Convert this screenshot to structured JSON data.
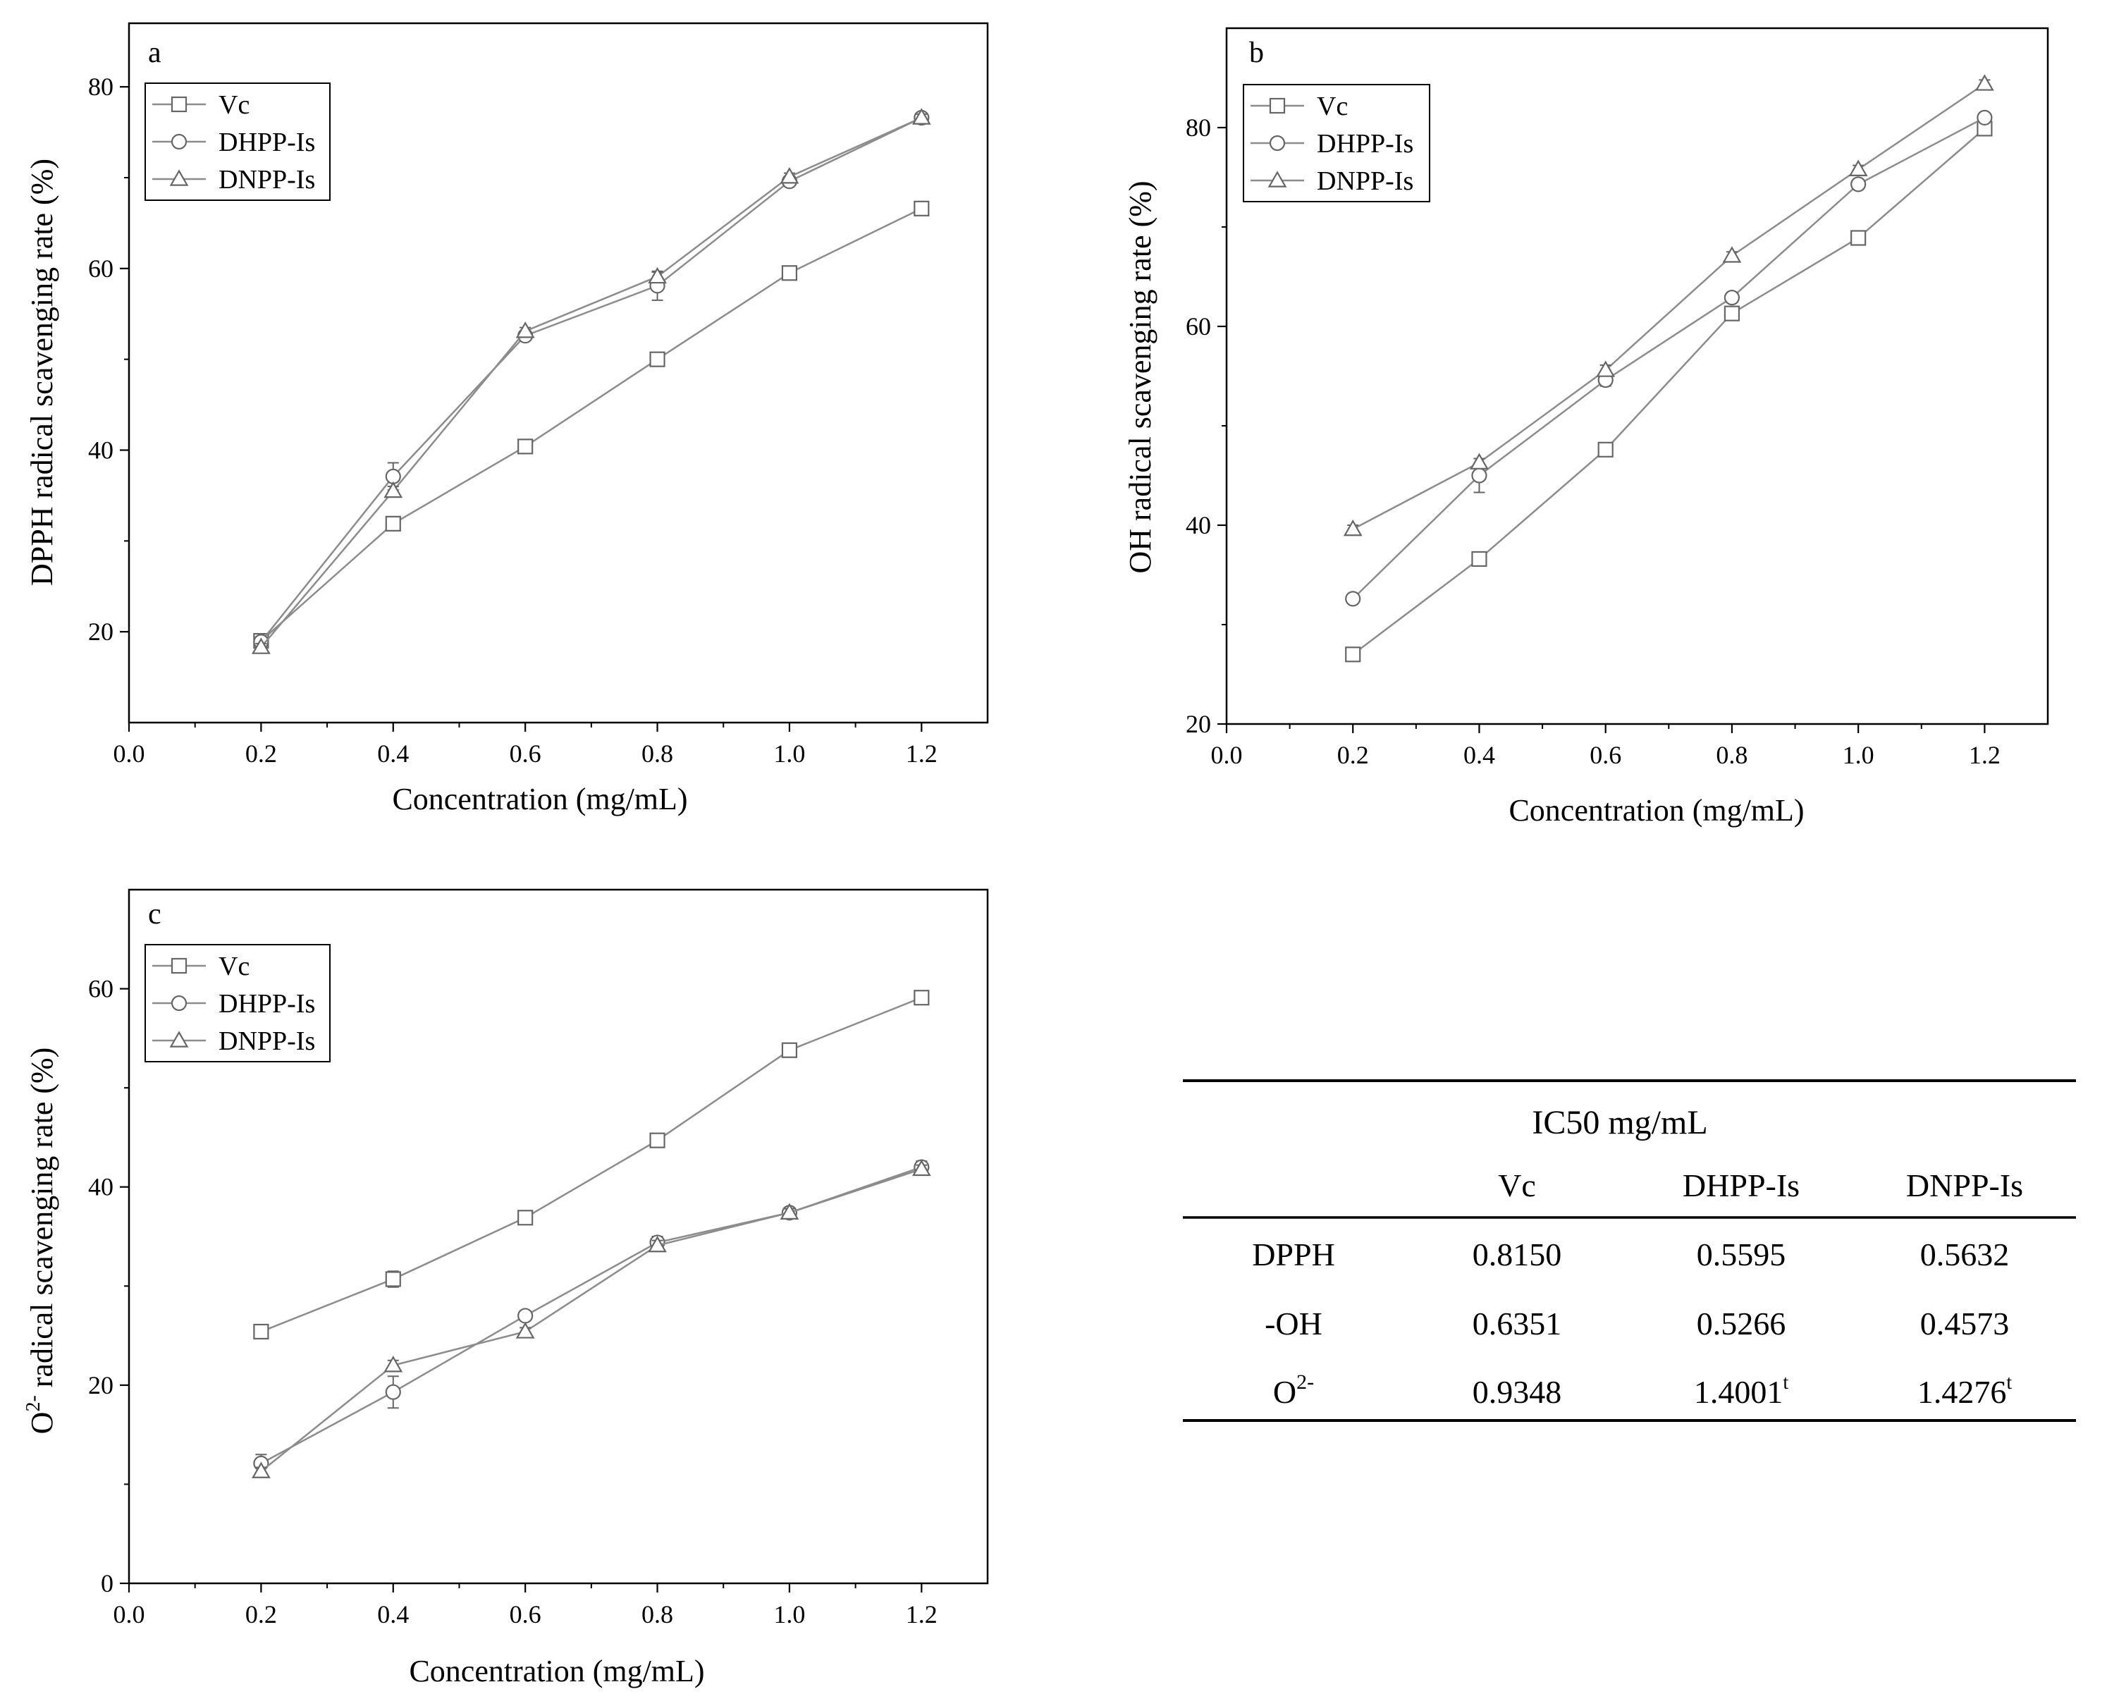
{
  "chart_data": [
    {
      "type": "line",
      "panel_label": "a",
      "xlabel": "Concentration (mg/mL)",
      "ylabel": "DPPH radical scavenging rate (%)",
      "xlim": [
        0.0,
        1.3
      ],
      "ylim": [
        10,
        87
      ],
      "xticks": [
        0.0,
        0.2,
        0.4,
        0.6,
        0.8,
        1.0,
        1.2
      ],
      "xtick_labels": [
        "0.0",
        "0.2",
        "0.4",
        "0.6",
        "0.8",
        "1.0",
        "1.2"
      ],
      "yticks": [
        20,
        40,
        60,
        80
      ],
      "ytick_labels": [
        "20",
        "40",
        "60",
        "80"
      ],
      "legend_position": "top-left",
      "x": [
        0.2,
        0.4,
        0.6,
        0.8,
        1.0,
        1.2
      ],
      "series": [
        {
          "name": "Vc",
          "marker": "square",
          "values": [
            19.0,
            31.9,
            40.4,
            50.0,
            59.5,
            66.6
          ],
          "errors": [
            0.4,
            0.5,
            0.4,
            0.4,
            0.5,
            0.5
          ]
        },
        {
          "name": "DHPP-Is",
          "marker": "circle",
          "values": [
            18.9,
            37.1,
            52.6,
            58.1,
            69.6,
            76.6
          ],
          "errors": [
            0.5,
            1.5,
            0.5,
            1.6,
            0.5,
            0.4
          ]
        },
        {
          "name": "DNPP-Is",
          "marker": "triangle",
          "values": [
            18.3,
            35.5,
            53.1,
            59.1,
            70.1,
            76.6
          ],
          "errors": [
            0.4,
            0.5,
            0.4,
            0.5,
            0.4,
            0.4
          ]
        }
      ]
    },
    {
      "type": "line",
      "panel_label": "b",
      "xlabel": "Concentration (mg/mL)",
      "ylabel": "OH radical scavenging rate (%)",
      "xlim": [
        0.0,
        1.3
      ],
      "ylim": [
        20,
        90
      ],
      "xticks": [
        0.0,
        0.2,
        0.4,
        0.6,
        0.8,
        1.0,
        1.2
      ],
      "xtick_labels": [
        "0.0",
        "0.2",
        "0.4",
        "0.6",
        "0.8",
        "1.0",
        "1.2"
      ],
      "yticks": [
        20,
        40,
        60,
        80
      ],
      "ytick_labels": [
        "20",
        "40",
        "60",
        "80"
      ],
      "legend_position": "top-left",
      "x": [
        0.2,
        0.4,
        0.6,
        0.8,
        1.0,
        1.2
      ],
      "series": [
        {
          "name": "Vc",
          "marker": "square",
          "values": [
            27.0,
            36.6,
            47.6,
            61.3,
            68.9,
            79.9
          ],
          "errors": [
            0.5,
            0.4,
            0.5,
            0.6,
            0.5,
            0.5
          ]
        },
        {
          "name": "DHPP-Is",
          "marker": "circle",
          "values": [
            32.6,
            45.0,
            54.6,
            62.9,
            74.3,
            81.0
          ],
          "errors": [
            0.4,
            1.7,
            0.6,
            0.5,
            0.5,
            0.4
          ]
        },
        {
          "name": "DNPP-Is",
          "marker": "triangle",
          "values": [
            39.6,
            46.3,
            55.6,
            67.1,
            75.8,
            84.4
          ],
          "errors": [
            0.4,
            0.4,
            0.5,
            0.4,
            0.4,
            0.4
          ]
        }
      ]
    },
    {
      "type": "line",
      "panel_label": "c",
      "xlabel": "Concentration (mg/mL)",
      "ylabel": "O2- radical scavenging rate (%)",
      "ylabel_main": "O",
      "ylabel_sup": "2-",
      "ylabel_rest": " radical scavenging rate (%)",
      "xlim": [
        0.0,
        1.3
      ],
      "ylim": [
        0,
        70
      ],
      "xticks": [
        0.0,
        0.2,
        0.4,
        0.6,
        0.8,
        1.0,
        1.2
      ],
      "xtick_labels": [
        "0.0",
        "0.2",
        "0.4",
        "0.6",
        "0.8",
        "1.0",
        "1.2"
      ],
      "yticks": [
        0,
        20,
        40,
        60
      ],
      "ytick_labels": [
        "0",
        "20",
        "40",
        "60"
      ],
      "legend_position": "top-left",
      "x": [
        0.2,
        0.4,
        0.6,
        0.8,
        1.0,
        1.2
      ],
      "series": [
        {
          "name": "Vc",
          "marker": "square",
          "values": [
            25.4,
            30.7,
            36.9,
            44.7,
            53.8,
            59.1
          ],
          "errors": [
            0.4,
            0.8,
            0.5,
            0.5,
            0.4,
            0.4
          ]
        },
        {
          "name": "DHPP-Is",
          "marker": "circle",
          "values": [
            12.1,
            19.3,
            27.0,
            34.4,
            37.4,
            42.0
          ],
          "errors": [
            0.9,
            1.6,
            0.5,
            0.6,
            0.5,
            0.6
          ]
        },
        {
          "name": "DNPP-Is",
          "marker": "triangle",
          "values": [
            11.3,
            22.0,
            25.4,
            34.1,
            37.4,
            41.8
          ],
          "errors": [
            0.4,
            0.5,
            0.4,
            0.5,
            0.4,
            0.4
          ]
        }
      ]
    },
    {
      "type": "table",
      "title": "IC50 mg/mL",
      "columns": [
        "",
        "Vc",
        "DHPP-Is",
        "DNPP-Is"
      ],
      "rows": [
        {
          "label": "DPPH",
          "label_sup": "",
          "cells": [
            {
              "v": "0.8150",
              "s": ""
            },
            {
              "v": "0.5595",
              "s": ""
            },
            {
              "v": "0.5632",
              "s": ""
            }
          ]
        },
        {
          "label": "-OH",
          "label_sup": "",
          "cells": [
            {
              "v": "0.6351",
              "s": ""
            },
            {
              "v": "0.5266",
              "s": ""
            },
            {
              "v": "0.4573",
              "s": ""
            }
          ]
        },
        {
          "label": "O",
          "label_sup": "2-",
          "cells": [
            {
              "v": "0.9348",
              "s": ""
            },
            {
              "v": "1.4001",
              "s": "t"
            },
            {
              "v": "1.4276",
              "s": "t"
            }
          ]
        }
      ]
    }
  ]
}
